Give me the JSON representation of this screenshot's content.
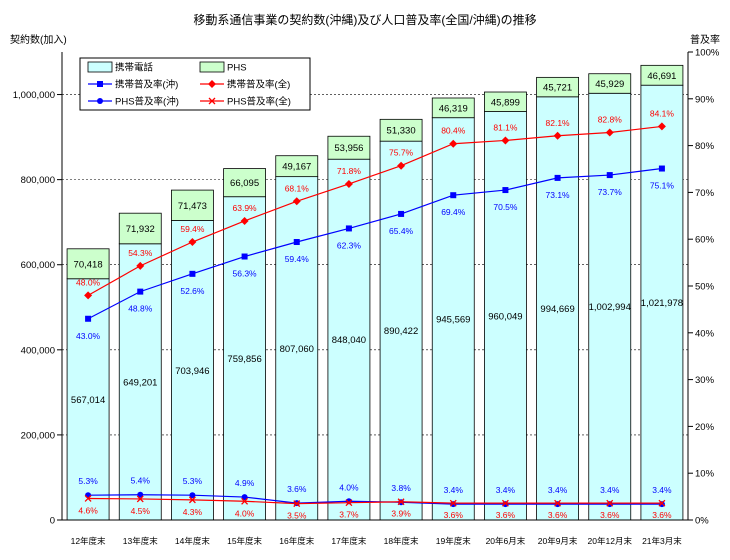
{
  "chart_data": {
    "type": "bar",
    "title": "移動系通信事業の契約数(沖縄)及び人口普及率(全国/沖縄)の推移",
    "ylabel": "契約数(加入)",
    "y2label": "普及率",
    "categories": [
      "12年度末",
      "13年度末",
      "14年度末",
      "15年度末",
      "16年度末",
      "17年度末",
      "18年度末",
      "19年度末",
      "20年6月末",
      "20年9月末",
      "20年12月末",
      "21年3月末"
    ],
    "stacked": true,
    "ylim": [
      0,
      1100000
    ],
    "yticks": [
      0,
      200000,
      400000,
      600000,
      800000,
      1000000
    ],
    "ytick_labels": [
      "0",
      "200,000",
      "400,000",
      "600,000",
      "800,000",
      "1,000,000"
    ],
    "y2lim": [
      0,
      100
    ],
    "y2ticks": [
      0,
      10,
      20,
      30,
      40,
      50,
      60,
      70,
      80,
      90,
      100
    ],
    "y2tick_labels": [
      "0%",
      "10%",
      "20%",
      "30%",
      "40%",
      "50%",
      "60%",
      "70%",
      "80%",
      "90%",
      "100%"
    ],
    "grid": true,
    "legend": "top-left",
    "bar_series": [
      {
        "name": "携帯電話",
        "color": "#ccffff",
        "values": [
          567014,
          649201,
          703946,
          759856,
          807060,
          848040,
          890422,
          945569,
          960049,
          994669,
          1002994,
          1021978
        ],
        "labels": [
          "567,014",
          "649,201",
          "703,946",
          "759,856",
          "807,060",
          "848,040",
          "890,422",
          "945,569",
          "960,049",
          "994,669",
          "1,002,994",
          "1,021,978"
        ]
      },
      {
        "name": "PHS",
        "color": "#ccffcc",
        "values": [
          70418,
          71932,
          71473,
          66095,
          49167,
          53956,
          51330,
          46319,
          45899,
          45721,
          45929,
          46691
        ],
        "labels": [
          "70,418",
          "71,932",
          "71,473",
          "66,095",
          "49,167",
          "53,956",
          "51,330",
          "46,319",
          "45,899",
          "45,721",
          "45,929",
          "46,691"
        ]
      }
    ],
    "line_series": [
      {
        "name": "携帯普及率(沖)",
        "color": "#0000ff",
        "marker": "square",
        "values": [
          43.0,
          48.8,
          52.6,
          56.3,
          59.4,
          62.3,
          65.4,
          69.4,
          70.5,
          73.1,
          73.7,
          75.1
        ],
        "labels": [
          "43.0%",
          "48.8%",
          "52.6%",
          "56.3%",
          "59.4%",
          "62.3%",
          "65.4%",
          "69.4%",
          "70.5%",
          "73.1%",
          "73.7%",
          "75.1%"
        ]
      },
      {
        "name": "携帯普及率(全)",
        "color": "#ff0000",
        "marker": "diamond",
        "values": [
          48.0,
          54.3,
          59.4,
          63.9,
          68.1,
          71.8,
          75.7,
          80.4,
          81.1,
          82.1,
          82.8,
          84.1
        ],
        "labels": [
          "48.0%",
          "54.3%",
          "59.4%",
          "63.9%",
          "68.1%",
          "71.8%",
          "75.7%",
          "80.4%",
          "81.1%",
          "82.1%",
          "82.8%",
          "84.1%"
        ]
      },
      {
        "name": "PHS普及率(沖)",
        "color": "#0000ff",
        "marker": "circle",
        "values": [
          5.3,
          5.4,
          5.3,
          4.9,
          3.6,
          4.0,
          3.8,
          3.4,
          3.4,
          3.4,
          3.4,
          3.4
        ],
        "labels": [
          "5.3%",
          "5.4%",
          "5.3%",
          "4.9%",
          "3.6%",
          "4.0%",
          "3.8%",
          "3.4%",
          "3.4%",
          "3.4%",
          "3.4%",
          "3.4%"
        ]
      },
      {
        "name": "PHS普及率(全)",
        "color": "#ff0000",
        "marker": "x",
        "values": [
          4.6,
          4.5,
          4.3,
          4.0,
          3.5,
          3.7,
          3.9,
          3.6,
          3.6,
          3.6,
          3.6,
          3.6
        ],
        "labels": [
          "4.6%",
          "4.5%",
          "4.3%",
          "4.0%",
          "3.5%",
          "3.7%",
          "3.9%",
          "3.6%",
          "3.6%",
          "3.6%",
          "3.6%",
          "3.6%"
        ]
      }
    ]
  }
}
